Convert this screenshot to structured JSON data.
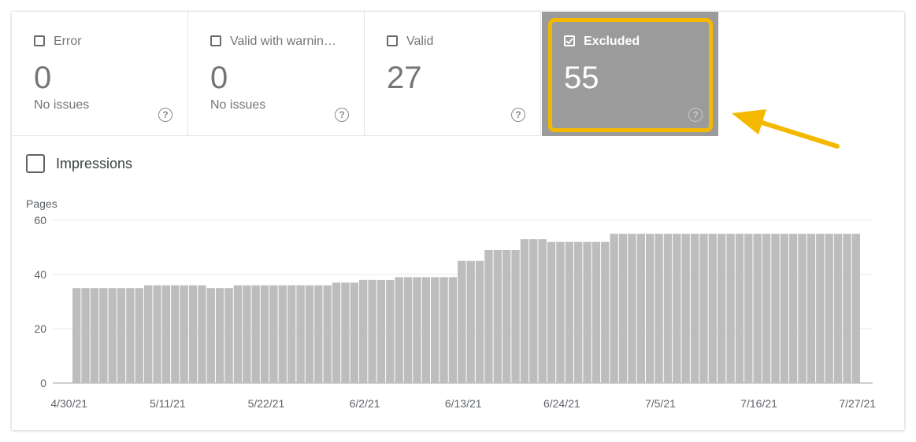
{
  "tiles": [
    {
      "label": "Error",
      "value": "0",
      "sub": "No issues",
      "checked": false
    },
    {
      "label": "Valid with warnin…",
      "value": "0",
      "sub": "No issues",
      "checked": false
    },
    {
      "label": "Valid",
      "value": "27",
      "sub": "",
      "checked": false
    },
    {
      "label": "Excluded",
      "value": "55",
      "sub": "",
      "checked": true
    }
  ],
  "help_glyph": "?",
  "metric": {
    "label": "Impressions",
    "checked": false
  },
  "colors": {
    "bar": "#bdbdbd",
    "active_tile": "#9b9b9b",
    "highlight": "#f5b800",
    "grid": "#e8e8e8"
  },
  "chart_data": {
    "type": "bar",
    "ylabel": "Pages",
    "ylim": [
      0,
      60
    ],
    "yticks": [
      0,
      20,
      40,
      60
    ],
    "xtick_labels": [
      "4/30/21",
      "5/11/21",
      "5/22/21",
      "6/2/21",
      "6/13/21",
      "6/24/21",
      "7/5/21",
      "7/16/21",
      "7/27/21"
    ],
    "values": [
      35,
      35,
      35,
      35,
      35,
      35,
      35,
      35,
      36,
      36,
      36,
      36,
      36,
      36,
      36,
      35,
      35,
      35,
      36,
      36,
      36,
      36,
      36,
      36,
      36,
      36,
      36,
      36,
      36,
      37,
      37,
      37,
      38,
      38,
      38,
      38,
      39,
      39,
      39,
      39,
      39,
      39,
      39,
      45,
      45,
      45,
      49,
      49,
      49,
      49,
      53,
      53,
      53,
      52,
      52,
      52,
      52,
      52,
      52,
      52,
      55,
      55,
      55,
      55,
      55,
      55,
      55,
      55,
      55,
      55,
      55,
      55,
      55,
      55,
      55,
      55,
      55,
      55,
      55,
      55,
      55,
      55,
      55,
      55,
      55,
      55,
      55,
      55
    ]
  }
}
